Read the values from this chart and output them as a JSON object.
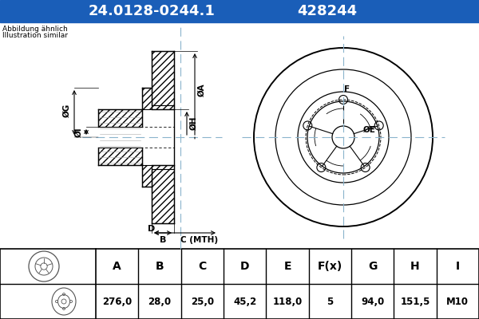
{
  "title_part": "24.0128-0244.1",
  "title_ref": "428244",
  "title_bg": "#1a5eb8",
  "title_fg": "#ffffff",
  "subtitle1": "Abbildung ähnlich",
  "subtitle2": "Illustration similar",
  "table_headers": [
    "A",
    "B",
    "C",
    "D",
    "E",
    "F(x)",
    "G",
    "H",
    "I"
  ],
  "table_values": [
    "276,0",
    "28,0",
    "25,0",
    "45,2",
    "118,0",
    "5",
    "94,0",
    "151,5",
    "M10"
  ],
  "bg_color": "#ffffff",
  "lc": "#8ab4cc",
  "label_E": "ØE",
  "label_F": "F",
  "label_A": "ØA",
  "label_H": "ØH",
  "label_G": "ØG",
  "label_I": "ØI",
  "label_B": "B",
  "label_C": "C (MTH)",
  "label_D": "D"
}
